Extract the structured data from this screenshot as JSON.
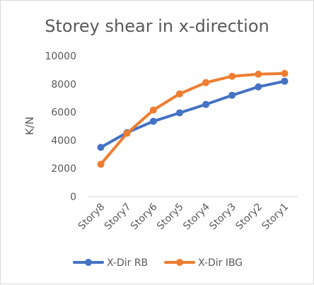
{
  "chart_data": {
    "type": "line",
    "title": "Storey shear in x-direction",
    "xlabel": "",
    "ylabel": "K/N",
    "categories": [
      "Story8",
      "Story7",
      "Story6",
      "Story5",
      "Story4",
      "Story3",
      "Story2",
      "Story1"
    ],
    "ylim": [
      0,
      10000
    ],
    "yticks": [
      "0",
      "2000",
      "4000",
      "6000",
      "8000",
      "10000"
    ],
    "grid": false,
    "legend_position": "bottom",
    "series": [
      {
        "name": "X-Dir RB",
        "color": "#4472c4",
        "values": [
          3500,
          4550,
          5350,
          5950,
          6550,
          7200,
          7800,
          8200
        ]
      },
      {
        "name": "X-Dir IBG",
        "color": "#ed7d31",
        "values": [
          2300,
          4500,
          6150,
          7300,
          8100,
          8550,
          8700,
          8750
        ]
      }
    ]
  }
}
